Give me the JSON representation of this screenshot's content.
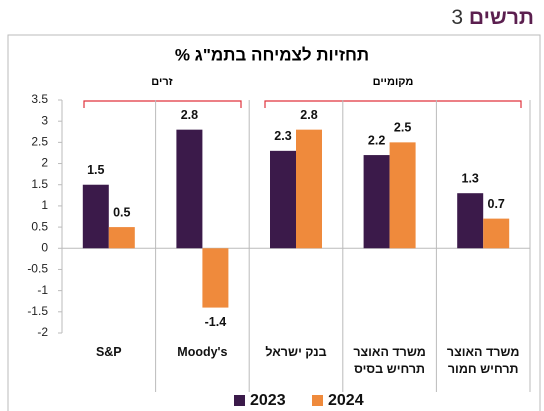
{
  "header": {
    "label": "תרשים",
    "number": "3"
  },
  "chart_data": {
    "type": "bar",
    "title": "תחזיות לצמיחה בתמ\"ג %",
    "groups": [
      "זרים",
      "מקומיים"
    ],
    "categories": [
      "S&P",
      "Moody's",
      "בנק ישראל",
      "משרד האוצר\nתרחיש בסיס",
      "משרד האוצר\nתרחיש חמור"
    ],
    "series": [
      {
        "name": "2023",
        "color": "#3b1a4a",
        "values": [
          1.5,
          2.8,
          2.3,
          2.2,
          1.3
        ]
      },
      {
        "name": "2024",
        "color": "#ef8a3c",
        "values": [
          0.5,
          -1.4,
          2.8,
          2.5,
          0.7
        ]
      }
    ],
    "ylim": [
      -2,
      3.5
    ],
    "yticks": [
      3.5,
      3,
      2.5,
      2,
      1.5,
      1,
      0.5,
      0,
      -0.5,
      -1,
      -1.5,
      -2
    ],
    "grid": false
  }
}
